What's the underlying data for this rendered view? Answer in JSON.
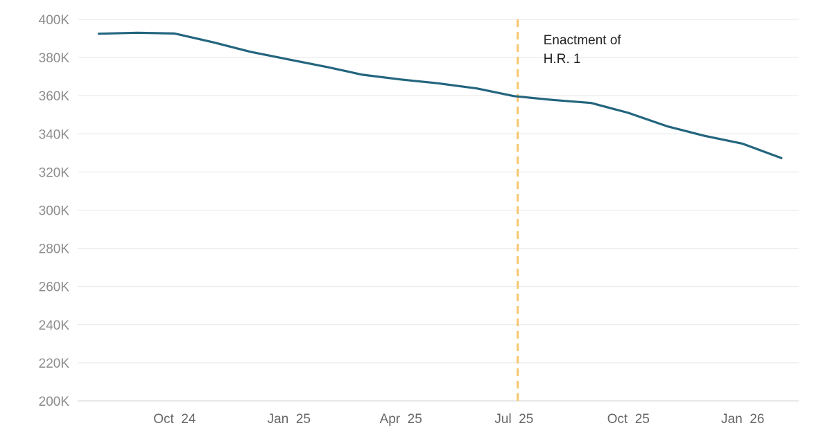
{
  "chart_data": {
    "type": "line",
    "title": "",
    "xlabel": "",
    "ylabel": "",
    "ylim": [
      200000,
      400000
    ],
    "xlim": [
      "2024-07-15",
      "2026-02-15"
    ],
    "y_ticks": [
      {
        "value": 200000,
        "label": "200K"
      },
      {
        "value": 220000,
        "label": "220K"
      },
      {
        "value": 240000,
        "label": "240K"
      },
      {
        "value": 260000,
        "label": "260K"
      },
      {
        "value": 280000,
        "label": "280K"
      },
      {
        "value": 300000,
        "label": "300K"
      },
      {
        "value": 320000,
        "label": "320K"
      },
      {
        "value": 340000,
        "label": "340K"
      },
      {
        "value": 360000,
        "label": "360K"
      },
      {
        "value": 380000,
        "label": "380K"
      },
      {
        "value": 400000,
        "label": "400K"
      }
    ],
    "x_ticks": [
      {
        "value": "2024-10-01",
        "label": "Oct  24"
      },
      {
        "value": "2025-01-01",
        "label": "Jan  25"
      },
      {
        "value": "2025-04-01",
        "label": "Apr  25"
      },
      {
        "value": "2025-07-01",
        "label": "Jul  25"
      },
      {
        "value": "2025-10-01",
        "label": "Oct  25"
      },
      {
        "value": "2026-01-01",
        "label": "Jan  26"
      }
    ],
    "grid": true,
    "series": [
      {
        "color": "#23657e",
        "points": [
          {
            "x": "2024-08-01",
            "y": 392500
          },
          {
            "x": "2024-09-01",
            "y": 393000
          },
          {
            "x": "2024-10-01",
            "y": 392600
          },
          {
            "x": "2024-11-01",
            "y": 388000
          },
          {
            "x": "2024-12-01",
            "y": 383000
          },
          {
            "x": "2025-01-01",
            "y": 379000
          },
          {
            "x": "2025-02-01",
            "y": 375000
          },
          {
            "x": "2025-03-01",
            "y": 371000
          },
          {
            "x": "2025-04-01",
            "y": 368500
          },
          {
            "x": "2025-05-01",
            "y": 366500
          },
          {
            "x": "2025-06-01",
            "y": 363800
          },
          {
            "x": "2025-07-01",
            "y": 359800
          },
          {
            "x": "2025-08-01",
            "y": 357800
          },
          {
            "x": "2025-09-01",
            "y": 356200
          },
          {
            "x": "2025-10-01",
            "y": 351000
          },
          {
            "x": "2025-11-01",
            "y": 344000
          },
          {
            "x": "2025-12-01",
            "y": 339000
          },
          {
            "x": "2026-01-01",
            "y": 334800
          },
          {
            "x": "2026-02-01",
            "y": 327300
          }
        ]
      }
    ],
    "annotations": [
      {
        "type": "vertical-line",
        "x": "2025-07-04",
        "color": "#f6c66a",
        "style": "dashed",
        "label_lines": [
          "Enactment of",
          "H.R. 1"
        ]
      }
    ]
  }
}
